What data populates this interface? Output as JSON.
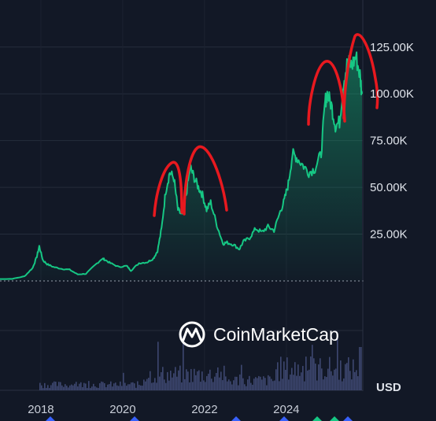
{
  "chart_data": {
    "type": "area",
    "source_logo": "CoinMarketCap",
    "price_axis": {
      "ticks": [
        25000,
        50000,
        75000,
        100000,
        125000
      ],
      "tick_labels": [
        "25.00K",
        "50.00K",
        "75.00K",
        "100.00K",
        "125.00K"
      ],
      "ylim": [
        0,
        135000
      ]
    },
    "volume_axis_unit": "USD",
    "time_axis": {
      "ticks": [
        2018,
        2020,
        2022,
        2024
      ],
      "tick_labels": [
        "2018",
        "2020",
        "2022",
        "2024"
      ],
      "xlim": [
        2017.0,
        2025.85
      ]
    },
    "series": [
      {
        "values_x": [
          2017.0,
          2017.3,
          2017.6,
          2017.8,
          2017.9,
          2017.96,
          2018.05,
          2018.15,
          2018.3,
          2018.5,
          2018.7,
          2018.9,
          2019.1,
          2019.3,
          2019.5,
          2019.55,
          2019.7,
          2019.9,
          2020.1,
          2020.2,
          2020.4,
          2020.6,
          2020.75,
          2020.85,
          2020.95,
          2021.05,
          2021.15,
          2021.25,
          2021.35,
          2021.45,
          2021.55,
          2021.65,
          2021.75,
          2021.85,
          2021.95,
          2022.05,
          2022.15,
          2022.3,
          2022.45,
          2022.55,
          2022.7,
          2022.85,
          2022.95,
          2023.1,
          2023.25,
          2023.4,
          2023.55,
          2023.7,
          2023.85,
          2023.95,
          2024.05,
          2024.15,
          2024.25,
          2024.4,
          2024.55,
          2024.7,
          2024.85,
          2024.95,
          2025.0,
          2025.1,
          2025.2,
          2025.3,
          2025.4,
          2025.5,
          2025.6,
          2025.7,
          2025.8,
          2025.85
        ],
        "values_y": [
          1000,
          1100,
          2500,
          7000,
          13000,
          18500,
          11000,
          9000,
          7500,
          6500,
          6000,
          3500,
          3800,
          8000,
          12000,
          11500,
          9500,
          7500,
          8000,
          5500,
          9500,
          10000,
          12000,
          16000,
          28000,
          48000,
          58000,
          55000,
          38000,
          35000,
          46000,
          61000,
          55000,
          50000,
          46000,
          38000,
          42000,
          30000,
          20000,
          20500,
          19500,
          17000,
          21000,
          23000,
          28000,
          26000,
          29000,
          27000,
          37000,
          43000,
          52000,
          68000,
          66000,
          62000,
          58000,
          60000,
          68000,
          96000,
          100000,
          94000,
          83000,
          85000,
          107000,
          117000,
          115000,
          120000,
          110000,
          100000
        ],
        "color": "#16c784"
      }
    ],
    "annotations": [
      "freehand-red-arches-over-peaks"
    ]
  }
}
